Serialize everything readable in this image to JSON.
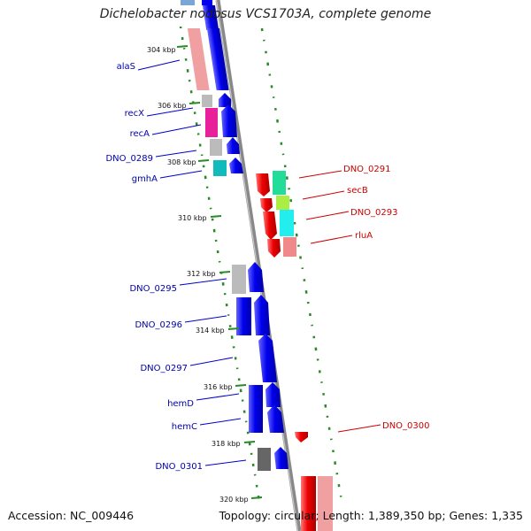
{
  "title": "Dichelobacter nodosus VCS1703A, complete genome",
  "footer": {
    "accession": "Accession: NC_009446",
    "summary": "Topology: circular; Length: 1,389,350 bp; Genes: 1,335"
  },
  "colors": {
    "forward_strand": "#0000ee",
    "reverse_strand": "#ee0000",
    "gc_track": "#2a8a2a",
    "backbone": "#888888"
  },
  "ticks": [
    "304 kbp",
    "306 kbp",
    "308 kbp",
    "310 kbp",
    "312 kbp",
    "314 kbp",
    "316 kbp",
    "318 kbp",
    "320 kbp"
  ],
  "genes_forward": [
    {
      "name": "alaS",
      "cog_color": "#f08a8a"
    },
    {
      "name": "recX",
      "cog_color": "#bbbbbb"
    },
    {
      "name": "recA",
      "cog_color": "#e8209a"
    },
    {
      "name": "DNO_0289",
      "cog_color": "#bbbbbb"
    },
    {
      "name": "gmhA",
      "cog_color": "#11bbbb"
    },
    {
      "name": "DNO_0295",
      "cog_color": "#bbbbbb"
    },
    {
      "name": "DNO_0296",
      "cog_color": "#0000ee"
    },
    {
      "name": "DNO_0297",
      "cog_color": "#0000ee"
    },
    {
      "name": "hemD",
      "cog_color": "#0000ee"
    },
    {
      "name": "hemC",
      "cog_color": "#0000ee"
    },
    {
      "name": "DNO_0301",
      "cog_color": "#666666"
    }
  ],
  "genes_reverse": [
    {
      "name": "DNO_0291",
      "cog_color": "#22dd99"
    },
    {
      "name": "secB",
      "cog_color": "#aaee44"
    },
    {
      "name": "DNO_0293",
      "cog_color": "#22eeee"
    },
    {
      "name": "rluA",
      "cog_color": "#f08a8a"
    },
    {
      "name": "DNO_0300",
      "cog_color": "#ee0000"
    }
  ]
}
